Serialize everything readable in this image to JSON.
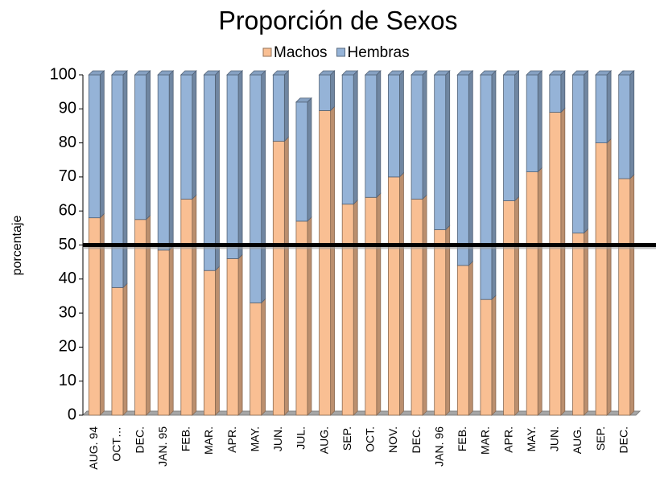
{
  "chart_data": {
    "type": "stacked_bar",
    "title": "Proporción de Sexos",
    "y_label": "porcentaje",
    "categories": [
      "AUG. 94",
      "OCT…",
      "DEC.",
      "JAN. 95",
      "FEB.",
      "MAR.",
      "APR.",
      "MAY.",
      "JUN.",
      "JUL.",
      "AUG.",
      "SEP.",
      "OCT.",
      "NOV.",
      "DEC.",
      "JAN. 96",
      "FEB.",
      "MAR.",
      "APR.",
      "MAY.",
      "JUN.",
      "AUG.",
      "SEP.",
      "DEC."
    ],
    "series": [
      {
        "name": "Machos",
        "color": "#f9bf93",
        "values": [
          58,
          37.5,
          57.5,
          48.5,
          63.5,
          42.5,
          46,
          33,
          80.5,
          57,
          89.5,
          62,
          64,
          70,
          63.5,
          54.5,
          44,
          34,
          63,
          71.5,
          89,
          53.5,
          80,
          69.5
        ]
      },
      {
        "name": "Hembras",
        "color": "#95b3d7",
        "values": [
          42,
          62.5,
          42.5,
          51.5,
          36.5,
          57.5,
          54,
          67,
          19.5,
          35,
          10.5,
          38,
          36,
          30,
          36.5,
          45.5,
          56,
          66,
          37,
          28.5,
          11,
          46.5,
          20,
          30.5
        ]
      }
    ],
    "ylim": [
      0,
      100
    ],
    "yticks": [
      0,
      10,
      20,
      30,
      40,
      50,
      60,
      70,
      80,
      90,
      100
    ],
    "reference_line": 50,
    "legend": "top"
  }
}
